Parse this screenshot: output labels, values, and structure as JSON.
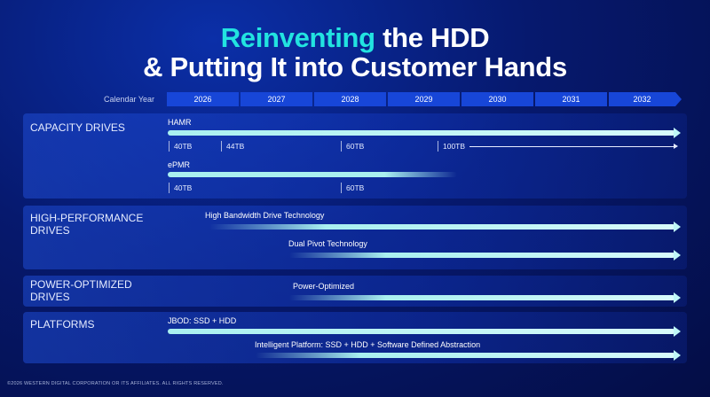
{
  "title": {
    "line1_accent": "Reinventing",
    "line1_rest": " the HDD",
    "line2": "& Putting It into Customer Hands"
  },
  "timeline": {
    "label": "Calendar Year",
    "years": [
      "2026",
      "2027",
      "2028",
      "2029",
      "2030",
      "2031",
      "2032"
    ]
  },
  "sections": {
    "capacity": {
      "label": "CAPACITY DRIVES",
      "hamr": {
        "label": "HAMR",
        "milestones": [
          "40TB",
          "44TB",
          "60TB",
          "100TB"
        ]
      },
      "epmr": {
        "label": "ePMR",
        "milestones": [
          "40TB",
          "60TB"
        ]
      }
    },
    "performance": {
      "label": "HIGH-PERFORMANCE DRIVES",
      "items": [
        "High Bandwidth Drive Technology",
        "Dual Pivot Technology"
      ]
    },
    "power": {
      "label": "POWER-OPTIMIZED DRIVES",
      "items": [
        "Power-Optimized"
      ]
    },
    "platforms": {
      "label": "PLATFORMS",
      "items": [
        "JBOD: SSD + HDD",
        "Intelligent Platform: SSD + HDD + Software Defined Abstraction"
      ]
    }
  },
  "footer": "©2026 WESTERN DIGITAL CORPORATION OR ITS AFFILIATES. ALL RIGHTS RESERVED.",
  "colors": {
    "accent_title": "#22e3e0",
    "year_bar": "#1746d8",
    "arrow": "#bff7f7"
  }
}
